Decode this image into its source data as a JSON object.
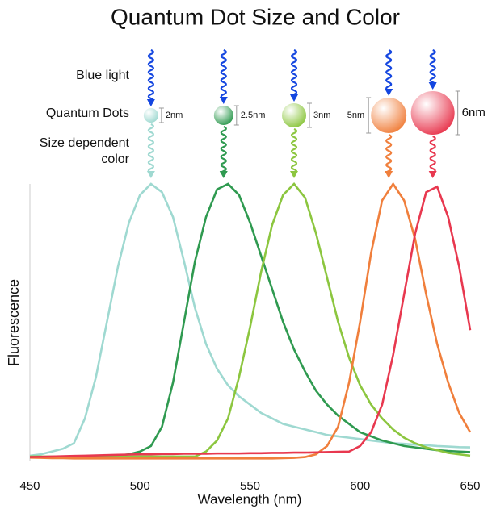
{
  "chart_data": {
    "type": "line",
    "title": "Quantum Dot Size and Color",
    "row_labels": [
      "Blue light",
      "Quantum Dots",
      "Size dependent color"
    ],
    "x_label": "Wavelength (nm)",
    "y_label": "Fluorescence",
    "xlim": [
      450,
      650
    ],
    "xticks": [
      450,
      500,
      550,
      600,
      650
    ],
    "ylim": [
      0,
      1
    ],
    "x": [
      450,
      455,
      460,
      465,
      470,
      475,
      480,
      485,
      490,
      495,
      500,
      505,
      510,
      515,
      520,
      525,
      530,
      535,
      540,
      545,
      550,
      555,
      560,
      565,
      570,
      575,
      580,
      585,
      590,
      595,
      600,
      605,
      610,
      615,
      620,
      625,
      630,
      635,
      640,
      645,
      650
    ],
    "series": [
      {
        "name": "2nm",
        "color": "#9fd9d1",
        "values": [
          0.015,
          0.02,
          0.03,
          0.04,
          0.06,
          0.15,
          0.3,
          0.5,
          0.7,
          0.86,
          0.96,
          1.0,
          0.97,
          0.88,
          0.72,
          0.55,
          0.42,
          0.33,
          0.27,
          0.23,
          0.2,
          0.17,
          0.15,
          0.13,
          0.12,
          0.11,
          0.1,
          0.09,
          0.085,
          0.08,
          0.075,
          0.07,
          0.065,
          0.06,
          0.058,
          0.055,
          0.053,
          0.05,
          0.048,
          0.046,
          0.045
        ]
      },
      {
        "name": "2.5nm",
        "color": "#2f9a50",
        "values": [
          0.01,
          0.01,
          0.01,
          0.01,
          0.01,
          0.01,
          0.01,
          0.012,
          0.015,
          0.02,
          0.03,
          0.05,
          0.12,
          0.28,
          0.5,
          0.72,
          0.88,
          0.98,
          1.0,
          0.96,
          0.86,
          0.74,
          0.62,
          0.5,
          0.4,
          0.32,
          0.25,
          0.2,
          0.16,
          0.13,
          0.1,
          0.085,
          0.07,
          0.06,
          0.05,
          0.045,
          0.04,
          0.035,
          0.032,
          0.03,
          0.028
        ]
      },
      {
        "name": "3nm",
        "color": "#8cc63f",
        "values": [
          0.012,
          0.012,
          0.012,
          0.012,
          0.012,
          0.012,
          0.012,
          0.012,
          0.012,
          0.012,
          0.012,
          0.012,
          0.012,
          0.012,
          0.012,
          0.012,
          0.03,
          0.07,
          0.15,
          0.3,
          0.48,
          0.68,
          0.85,
          0.96,
          1.0,
          0.95,
          0.82,
          0.66,
          0.5,
          0.37,
          0.27,
          0.2,
          0.15,
          0.11,
          0.08,
          0.06,
          0.045,
          0.035,
          0.025,
          0.02,
          0.015
        ]
      },
      {
        "name": "5nm",
        "color": "#f07f3c",
        "values": [
          0.008,
          0.007,
          0.006,
          0.006,
          0.005,
          0.005,
          0.005,
          0.005,
          0.005,
          0.005,
          0.005,
          0.005,
          0.005,
          0.005,
          0.005,
          0.005,
          0.005,
          0.005,
          0.005,
          0.005,
          0.005,
          0.005,
          0.005,
          0.006,
          0.007,
          0.01,
          0.02,
          0.05,
          0.12,
          0.28,
          0.5,
          0.75,
          0.94,
          1.0,
          0.94,
          0.8,
          0.6,
          0.42,
          0.28,
          0.17,
          0.1
        ]
      },
      {
        "name": "6nm",
        "color": "#e8384f",
        "values": [
          0.01,
          0.011,
          0.012,
          0.013,
          0.014,
          0.015,
          0.016,
          0.017,
          0.018,
          0.019,
          0.02,
          0.02,
          0.021,
          0.021,
          0.022,
          0.022,
          0.022,
          0.023,
          0.023,
          0.023,
          0.024,
          0.024,
          0.025,
          0.025,
          0.026,
          0.026,
          0.027,
          0.028,
          0.029,
          0.03,
          0.05,
          0.1,
          0.2,
          0.38,
          0.6,
          0.82,
          0.97,
          0.99,
          0.88,
          0.7,
          0.47
        ]
      }
    ]
  }
}
